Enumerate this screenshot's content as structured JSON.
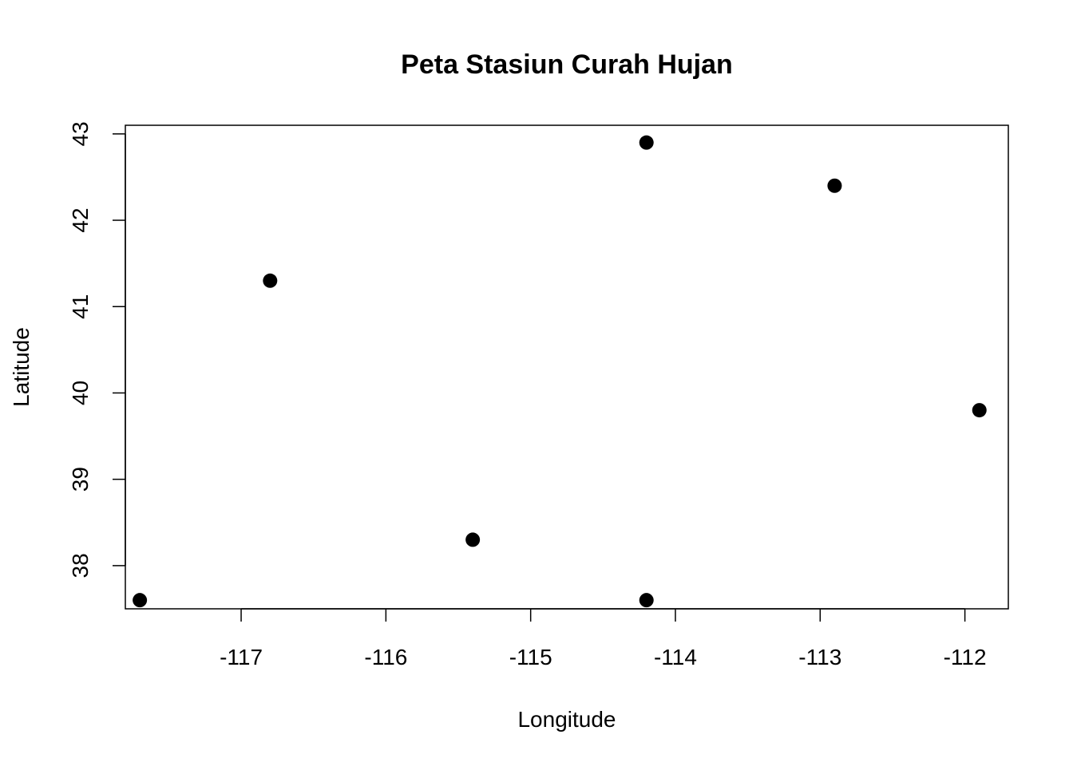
{
  "chart_data": {
    "type": "scatter",
    "title": "Peta Stasiun Curah Hujan",
    "xlabel": "Longitude",
    "ylabel": "Latitude",
    "xlim": [
      -117.8,
      -111.7
    ],
    "ylim": [
      37.5,
      43.1
    ],
    "xticks": [
      -117,
      -116,
      -115,
      -114,
      -113,
      -112
    ],
    "yticks": [
      38,
      39,
      40,
      41,
      42,
      43
    ],
    "xtick_labels": [
      "-117",
      "-116",
      "-115",
      "-114",
      "-113",
      "-112"
    ],
    "ytick_labels": [
      "38",
      "39",
      "40",
      "41",
      "42",
      "43"
    ],
    "grid": false,
    "legend": "none",
    "point_color": "#000000",
    "series": [
      {
        "points": [
          {
            "x": -117.7,
            "y": 37.6
          },
          {
            "x": -116.8,
            "y": 41.3
          },
          {
            "x": -115.4,
            "y": 38.3
          },
          {
            "x": -114.2,
            "y": 42.9
          },
          {
            "x": -114.2,
            "y": 37.6
          },
          {
            "x": -112.9,
            "y": 42.4
          },
          {
            "x": -111.9,
            "y": 39.8
          }
        ]
      }
    ]
  }
}
